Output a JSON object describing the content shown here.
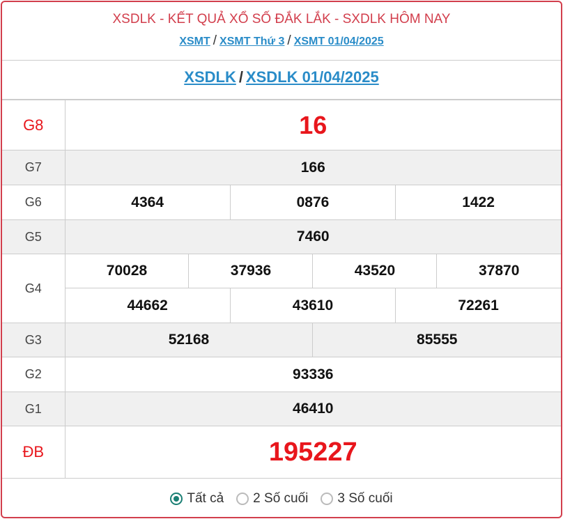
{
  "header": {
    "title": "XSDLK - KẾT QUẢ XỔ SỐ ĐẮK LẮK - SXDLK HÔM NAY",
    "breadcrumbs": [
      "XSMT",
      "XSMT Thứ 3",
      "XSMT 01/04/2025"
    ],
    "separator": "/"
  },
  "subheader": {
    "links": [
      "XSDLK",
      "XSDLK 01/04/2025"
    ]
  },
  "prizes": {
    "g8": {
      "label": "G8",
      "numbers": [
        "16"
      ]
    },
    "g7": {
      "label": "G7",
      "numbers": [
        "166"
      ]
    },
    "g6": {
      "label": "G6",
      "numbers": [
        "4364",
        "0876",
        "1422"
      ]
    },
    "g5": {
      "label": "G5",
      "numbers": [
        "7460"
      ]
    },
    "g4": {
      "label": "G4",
      "numbers": [
        "70028",
        "37936",
        "43520",
        "37870",
        "44662",
        "43610",
        "72261"
      ]
    },
    "g3": {
      "label": "G3",
      "numbers": [
        "52168",
        "85555"
      ]
    },
    "g2": {
      "label": "G2",
      "numbers": [
        "93336"
      ]
    },
    "g1": {
      "label": "G1",
      "numbers": [
        "46410"
      ]
    },
    "db": {
      "label": "ĐB",
      "numbers": [
        "195227"
      ]
    }
  },
  "filter": {
    "options": [
      {
        "label": "Tất cả",
        "selected": true
      },
      {
        "label": "2 Số cuối",
        "selected": false
      },
      {
        "label": "3 Số cuối",
        "selected": false
      }
    ]
  },
  "colors": {
    "accent": "#d23e4c",
    "link": "#2a8cc8",
    "highlight": "#e8161c",
    "radio": "#1a7f74"
  }
}
